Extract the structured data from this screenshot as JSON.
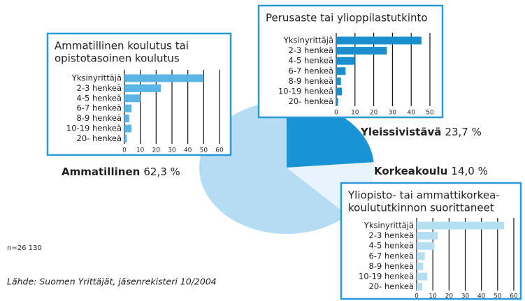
{
  "chart_data": [
    {
      "type": "pie",
      "categories": [
        "Yleissivistävä",
        "Korkeakoulu",
        "Ammatillinen"
      ],
      "values": [
        23.7,
        14.0,
        62.3
      ],
      "value_labels": [
        "23,7 %",
        "14,0 %",
        "62,3 %"
      ],
      "colors": [
        "#1a93d4",
        "#e8f4fb",
        "#b5dcf2"
      ]
    },
    {
      "type": "barh",
      "title": [
        "Ammatillinen koulutus tai",
        "opistotasoinen koulutus"
      ],
      "categories": [
        "Yksinyrittäjä",
        "2-3 henkeä",
        "4-5 henkeä",
        "6-7 henkeä",
        "8-9 henkeä",
        "10-19 henkeä",
        "20-  henkeä"
      ],
      "values": [
        50,
        23,
        10,
        4.5,
        3,
        4.5,
        1.5
      ],
      "color": "#5ab4e5",
      "xlim": [
        0,
        60
      ],
      "xticks": [
        0,
        10,
        20,
        30,
        40,
        50,
        60
      ],
      "grid": true
    },
    {
      "type": "barh",
      "title": [
        "Perusaste tai ylioppilastutkinto"
      ],
      "categories": [
        "Yksinyrittäjä",
        "2-3 henkeä",
        "4-5 henkeä",
        "6-7 henkeä",
        "8-9 henkeä",
        "10-19 henkeä",
        "20-  henkeä"
      ],
      "values": [
        45.5,
        27,
        10,
        5,
        2.5,
        3,
        1
      ],
      "color": "#1a8fd0",
      "xlim": [
        0,
        50
      ],
      "xticks": [
        0,
        10,
        20,
        30,
        40,
        50
      ],
      "grid": true
    },
    {
      "type": "barh",
      "title": [
        "Yliopisto- tai ammattikorkea-",
        "koulututkinnon suorittaneet"
      ],
      "categories": [
        "Yksinyrittäjä",
        "2-3 henkeä",
        "4-5 henkeä",
        "6-7 henkeä",
        "8-9 henkeä",
        "10-19 henkeä",
        "20-  henkeä"
      ],
      "values": [
        54,
        13,
        11,
        5,
        4,
        6.5,
        3.5
      ],
      "color": "#b5def3",
      "xlim": [
        0,
        60
      ],
      "xticks": [
        0,
        10,
        20,
        30,
        40,
        50,
        60
      ],
      "grid": true
    }
  ],
  "note": "n=26 130",
  "source": "Lähde: Suomen Yrittäjät, jäsenrekisteri 10/2004"
}
